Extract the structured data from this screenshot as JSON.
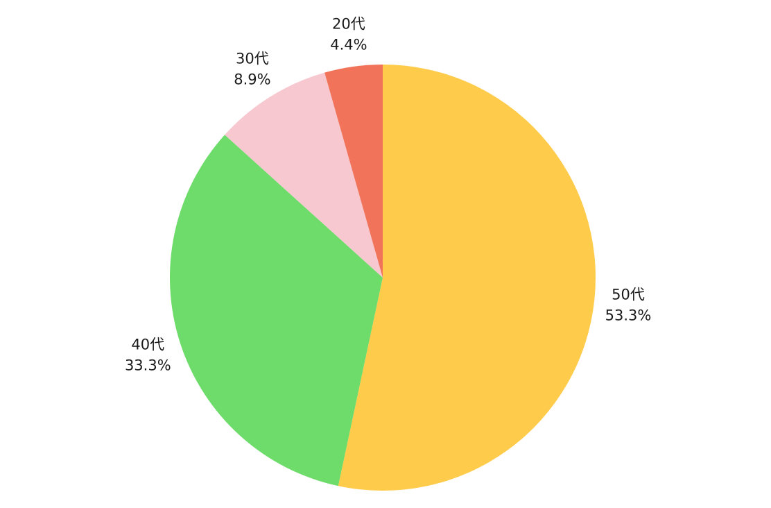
{
  "chart_data": {
    "type": "pie",
    "slices": [
      {
        "label": "50代",
        "value": 53.3,
        "percent_label": "53.3%",
        "color": "#FECB4B"
      },
      {
        "label": "40代",
        "value": 33.3,
        "percent_label": "33.3%",
        "color": "#6EDC6A"
      },
      {
        "label": "30代",
        "value": 8.9,
        "percent_label": "8.9%",
        "color": "#F7C8D0"
      },
      {
        "label": "20代",
        "value": 4.4,
        "percent_label": "4.4%",
        "color": "#F1745A"
      }
    ],
    "start_angle": "12 o'clock",
    "direction": "clockwise",
    "legend": "none"
  }
}
